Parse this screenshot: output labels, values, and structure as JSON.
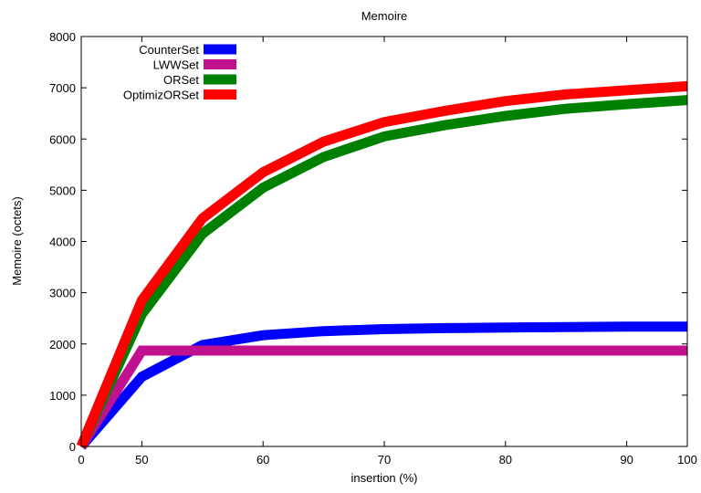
{
  "chart_data": {
    "type": "line",
    "title": "Memoire",
    "xlabel": "insertion (%)",
    "ylabel": "Memoire (octets)",
    "xlim": [
      0,
      100
    ],
    "ylim": [
      0,
      8000
    ],
    "x_ticks": [
      {
        "value": 0,
        "label": "0"
      },
      {
        "value": 10,
        "label": "50"
      },
      {
        "value": 30,
        "label": "60"
      },
      {
        "value": 50,
        "label": "70"
      },
      {
        "value": 70,
        "label": "80"
      },
      {
        "value": 90,
        "label": "90"
      },
      {
        "value": 100,
        "label": "100"
      }
    ],
    "y_ticks": [
      0,
      1000,
      2000,
      3000,
      4000,
      5000,
      6000,
      7000,
      8000
    ],
    "grid": false,
    "legend_position": "top-left",
    "series": [
      {
        "name": "CounterSet",
        "color": "#0000ff",
        "points": [
          [
            0,
            0
          ],
          [
            10,
            1360
          ],
          [
            20,
            1980
          ],
          [
            30,
            2170
          ],
          [
            40,
            2250
          ],
          [
            50,
            2290
          ],
          [
            60,
            2310
          ],
          [
            70,
            2320
          ],
          [
            80,
            2330
          ],
          [
            90,
            2340
          ],
          [
            100,
            2340
          ]
        ]
      },
      {
        "name": "LWWSet",
        "color": "#c0128f",
        "points": [
          [
            0,
            0
          ],
          [
            10,
            1870
          ],
          [
            20,
            1870
          ],
          [
            30,
            1870
          ],
          [
            40,
            1870
          ],
          [
            50,
            1870
          ],
          [
            60,
            1870
          ],
          [
            70,
            1870
          ],
          [
            80,
            1870
          ],
          [
            90,
            1870
          ],
          [
            100,
            1870
          ]
        ]
      },
      {
        "name": "ORSet",
        "color": "#008000",
        "points": [
          [
            0,
            0
          ],
          [
            10,
            2580
          ],
          [
            20,
            4150
          ],
          [
            30,
            5050
          ],
          [
            40,
            5650
          ],
          [
            50,
            6050
          ],
          [
            60,
            6270
          ],
          [
            70,
            6450
          ],
          [
            80,
            6590
          ],
          [
            90,
            6680
          ],
          [
            100,
            6760
          ]
        ]
      },
      {
        "name": "OptimizORSet",
        "color": "#ff0000",
        "points": [
          [
            0,
            0
          ],
          [
            10,
            2850
          ],
          [
            20,
            4450
          ],
          [
            30,
            5350
          ],
          [
            40,
            5950
          ],
          [
            50,
            6330
          ],
          [
            60,
            6550
          ],
          [
            70,
            6740
          ],
          [
            80,
            6870
          ],
          [
            90,
            6950
          ],
          [
            100,
            7030
          ]
        ]
      }
    ]
  }
}
